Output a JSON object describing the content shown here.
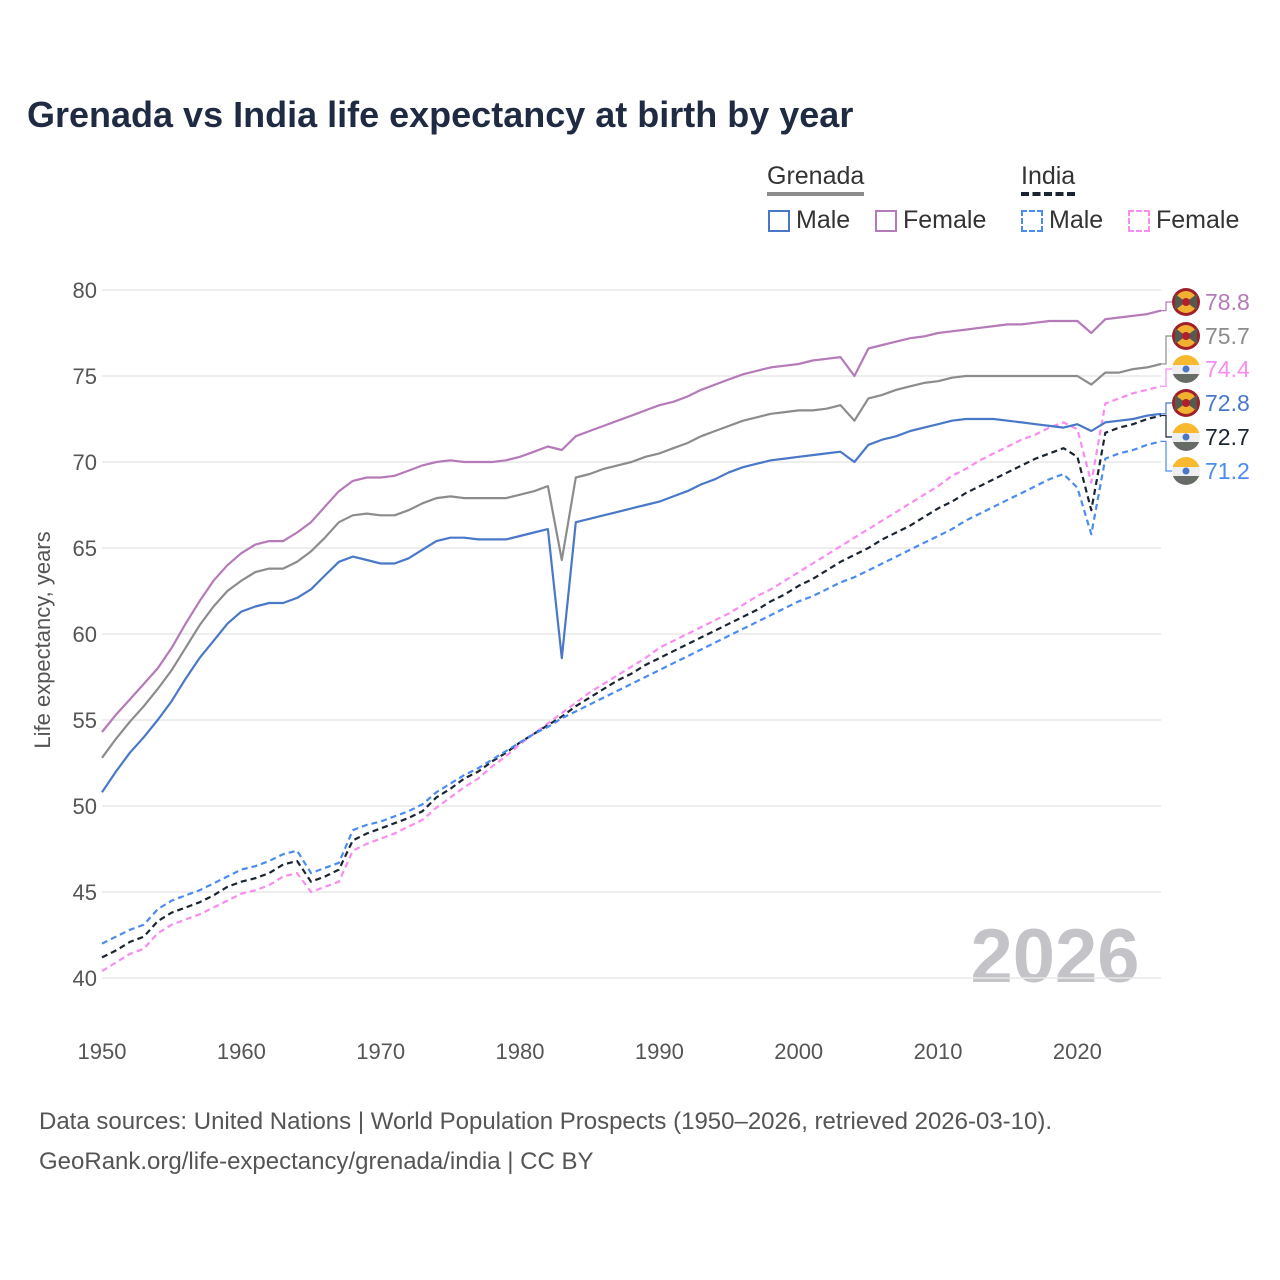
{
  "chart_data": {
    "type": "line",
    "title": "Grenada vs India life expectancy at birth by year",
    "xlabel": "",
    "ylabel": "Life expectancy, years",
    "xlim": [
      1950,
      2026
    ],
    "ylim": [
      40,
      80
    ],
    "yticks": [
      "40",
      "45",
      "50",
      "55",
      "60",
      "65",
      "70",
      "75",
      "80"
    ],
    "xticks": [
      "1950",
      "1960",
      "1970",
      "1980",
      "1990",
      "2000",
      "2010",
      "2020"
    ],
    "grid": true,
    "watermark_year": "2026",
    "x_start": 1950,
    "legend": {
      "placement": "top-right",
      "groups": [
        {
          "name": "Grenada",
          "items": [
            "Male",
            "Female"
          ]
        },
        {
          "name": "India",
          "items": [
            "Male",
            "Female"
          ]
        }
      ]
    },
    "series": [
      {
        "name": "Grenada Female",
        "country": "Grenada",
        "color": "#b57ab8",
        "dashed": false,
        "end_label": "78.8",
        "values": [
          54.3,
          55.3,
          56.2,
          57.1,
          58.0,
          59.2,
          60.6,
          61.9,
          63.1,
          64.0,
          64.7,
          65.2,
          65.4,
          65.4,
          65.9,
          66.5,
          67.4,
          68.3,
          68.9,
          69.1,
          69.1,
          69.2,
          69.5,
          69.8,
          70.0,
          70.1,
          70.0,
          70.0,
          70.0,
          70.1,
          70.3,
          70.6,
          70.9,
          70.7,
          71.5,
          71.8,
          72.1,
          72.4,
          72.7,
          73.0,
          73.3,
          73.5,
          73.8,
          74.2,
          74.5,
          74.8,
          75.1,
          75.3,
          75.5,
          75.6,
          75.7,
          75.9,
          76.0,
          76.1,
          75.0,
          76.6,
          76.8,
          77.0,
          77.2,
          77.3,
          77.5,
          77.6,
          77.7,
          77.8,
          77.9,
          78.0,
          78.0,
          78.1,
          78.2,
          78.2,
          78.2,
          77.5,
          78.3,
          78.4,
          78.5,
          78.6,
          78.8
        ]
      },
      {
        "name": "Grenada",
        "country": "Grenada",
        "color": "#8c8c8c",
        "dashed": false,
        "end_label": "75.7",
        "values": [
          52.8,
          53.9,
          54.9,
          55.8,
          56.8,
          57.9,
          59.2,
          60.5,
          61.6,
          62.5,
          63.1,
          63.6,
          63.8,
          63.8,
          64.2,
          64.8,
          65.6,
          66.5,
          66.9,
          67.0,
          66.9,
          66.9,
          67.2,
          67.6,
          67.9,
          68.0,
          67.9,
          67.9,
          67.9,
          67.9,
          68.1,
          68.3,
          68.6,
          64.3,
          69.1,
          69.3,
          69.6,
          69.8,
          70.0,
          70.3,
          70.5,
          70.8,
          71.1,
          71.5,
          71.8,
          72.1,
          72.4,
          72.6,
          72.8,
          72.9,
          73.0,
          73.0,
          73.1,
          73.3,
          72.4,
          73.7,
          73.9,
          74.2,
          74.4,
          74.6,
          74.7,
          74.9,
          75.0,
          75.0,
          75.0,
          75.0,
          75.0,
          75.0,
          75.0,
          75.0,
          75.0,
          74.5,
          75.2,
          75.2,
          75.4,
          75.5,
          75.7
        ]
      },
      {
        "name": "India Female",
        "country": "India",
        "color": "#f98cf0",
        "dashed": true,
        "end_label": "74.4",
        "values": [
          40.4,
          40.9,
          41.4,
          41.7,
          42.6,
          43.1,
          43.4,
          43.7,
          44.1,
          44.5,
          44.9,
          45.1,
          45.4,
          45.9,
          46.1,
          45.0,
          45.3,
          45.6,
          47.4,
          47.8,
          48.1,
          48.4,
          48.8,
          49.2,
          49.9,
          50.5,
          51.1,
          51.6,
          52.3,
          52.9,
          53.6,
          54.2,
          54.8,
          55.4,
          56.0,
          56.6,
          57.1,
          57.6,
          58.1,
          58.6,
          59.2,
          59.6,
          60.0,
          60.4,
          60.8,
          61.2,
          61.7,
          62.2,
          62.6,
          63.1,
          63.6,
          64.1,
          64.6,
          65.1,
          65.6,
          66.1,
          66.6,
          67.1,
          67.6,
          68.1,
          68.6,
          69.2,
          69.6,
          70.1,
          70.5,
          70.9,
          71.3,
          71.6,
          72.0,
          72.3,
          71.9,
          68.8,
          73.4,
          73.7,
          74.0,
          74.2,
          74.4
        ]
      },
      {
        "name": "Grenada Male",
        "country": "Grenada",
        "color": "#4a78c8",
        "dashed": false,
        "end_label": "72.8",
        "values": [
          50.8,
          52.0,
          53.1,
          54.0,
          55.0,
          56.1,
          57.4,
          58.6,
          59.6,
          60.6,
          61.3,
          61.6,
          61.8,
          61.8,
          62.1,
          62.6,
          63.4,
          64.2,
          64.5,
          64.3,
          64.1,
          64.1,
          64.4,
          64.9,
          65.4,
          65.6,
          65.6,
          65.5,
          65.5,
          65.5,
          65.7,
          65.9,
          66.1,
          58.6,
          66.5,
          66.7,
          66.9,
          67.1,
          67.3,
          67.5,
          67.7,
          68.0,
          68.3,
          68.7,
          69.0,
          69.4,
          69.7,
          69.9,
          70.1,
          70.2,
          70.3,
          70.4,
          70.5,
          70.6,
          70.0,
          71.0,
          71.3,
          71.5,
          71.8,
          72.0,
          72.2,
          72.4,
          72.5,
          72.5,
          72.5,
          72.4,
          72.3,
          72.2,
          72.1,
          72.0,
          72.2,
          71.8,
          72.3,
          72.4,
          72.5,
          72.7,
          72.8
        ]
      },
      {
        "name": "India",
        "country": "India",
        "color": "#1b2433",
        "dashed": true,
        "end_label": "72.7",
        "values": [
          41.2,
          41.6,
          42.1,
          42.4,
          43.3,
          43.8,
          44.1,
          44.4,
          44.8,
          45.3,
          45.6,
          45.8,
          46.1,
          46.6,
          46.8,
          45.6,
          45.9,
          46.3,
          48.0,
          48.4,
          48.7,
          49.0,
          49.3,
          49.7,
          50.5,
          51.0,
          51.6,
          52.0,
          52.6,
          53.1,
          53.7,
          54.2,
          54.7,
          55.2,
          55.8,
          56.3,
          56.8,
          57.3,
          57.7,
          58.2,
          58.6,
          59.0,
          59.4,
          59.8,
          60.2,
          60.6,
          61.0,
          61.4,
          61.9,
          62.3,
          62.8,
          63.2,
          63.7,
          64.2,
          64.6,
          65.0,
          65.5,
          65.9,
          66.3,
          66.8,
          67.3,
          67.7,
          68.2,
          68.6,
          69.0,
          69.4,
          69.8,
          70.2,
          70.5,
          70.8,
          70.3,
          67.2,
          71.7,
          72.0,
          72.2,
          72.5,
          72.7
        ]
      },
      {
        "name": "India Male",
        "country": "India",
        "color": "#4a8cf0",
        "dashed": true,
        "end_label": "71.2",
        "values": [
          42.0,
          42.4,
          42.8,
          43.1,
          44.0,
          44.5,
          44.8,
          45.1,
          45.5,
          45.9,
          46.3,
          46.5,
          46.8,
          47.2,
          47.4,
          46.1,
          46.4,
          46.7,
          48.6,
          48.9,
          49.1,
          49.4,
          49.7,
          50.1,
          50.8,
          51.3,
          51.8,
          52.2,
          52.7,
          53.2,
          53.7,
          54.2,
          54.6,
          55.1,
          55.5,
          55.9,
          56.3,
          56.7,
          57.1,
          57.5,
          57.9,
          58.3,
          58.7,
          59.1,
          59.5,
          59.9,
          60.3,
          60.7,
          61.1,
          61.5,
          61.9,
          62.2,
          62.6,
          63.0,
          63.3,
          63.7,
          64.1,
          64.5,
          64.9,
          65.3,
          65.7,
          66.1,
          66.6,
          67.0,
          67.4,
          67.8,
          68.2,
          68.6,
          69.0,
          69.3,
          68.5,
          65.8,
          70.2,
          70.5,
          70.7,
          71.0,
          71.2
        ]
      }
    ]
  },
  "sources": {
    "line1": "Data sources: United Nations | World Population Prospects (1950–2026, retrieved 2026-03-10).",
    "line2": "GeoRank.org/life-expectancy/grenada/india | CC BY"
  }
}
